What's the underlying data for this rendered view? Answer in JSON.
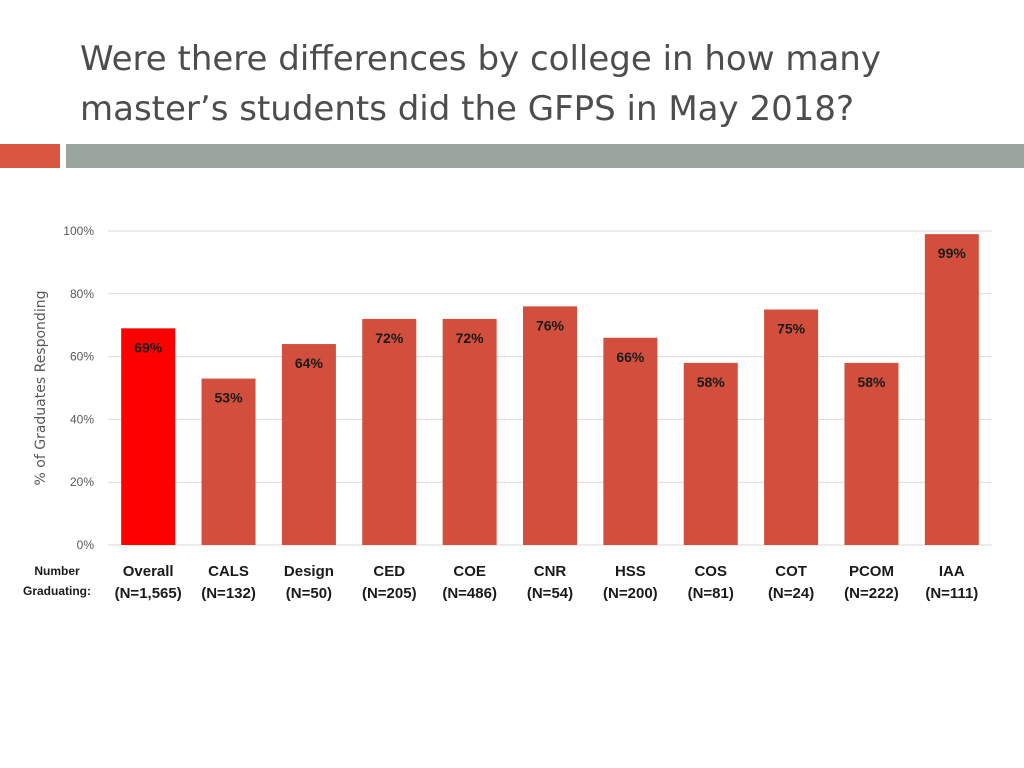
{
  "slide": {
    "title_line1": "Were there differences by college in how many",
    "title_line2": "master’s students did the GFPS in May 2018?"
  },
  "colors": {
    "bar": "#d14f3c",
    "bar_highlight": "#ff0000",
    "accent_orange": "#d9553f",
    "accent_gray": "#9aa5a0"
  },
  "chart_data": {
    "type": "bar",
    "title": "",
    "ylabel": "% of Graduates Responding",
    "xlabel": "",
    "ylim": [
      0,
      100
    ],
    "yticks": [
      "0%",
      "20%",
      "40%",
      "60%",
      "80%",
      "100%"
    ],
    "ytick_values": [
      0,
      20,
      40,
      60,
      80,
      100
    ],
    "grid": true,
    "row_label_line1": "Number",
    "row_label_line2": "Graduating:",
    "categories": [
      "Overall",
      "CALS",
      "Design",
      "CED",
      "COE",
      "CNR",
      "HSS",
      "COS",
      "COT",
      "PCOM",
      "IAA"
    ],
    "counts": [
      "(N=1,565)",
      "(N=132)",
      "(N=50)",
      "(N=205)",
      "(N=486)",
      "(N=54)",
      "(N=200)",
      "(N=81)",
      "(N=24)",
      "(N=222)",
      "(N=111)"
    ],
    "values": [
      69,
      53,
      64,
      72,
      72,
      76,
      66,
      58,
      75,
      58,
      99
    ],
    "value_labels": [
      "69%",
      "53%",
      "64%",
      "72%",
      "72%",
      "76%",
      "66%",
      "58%",
      "75%",
      "58%",
      "99%"
    ],
    "highlight_index": 0
  }
}
